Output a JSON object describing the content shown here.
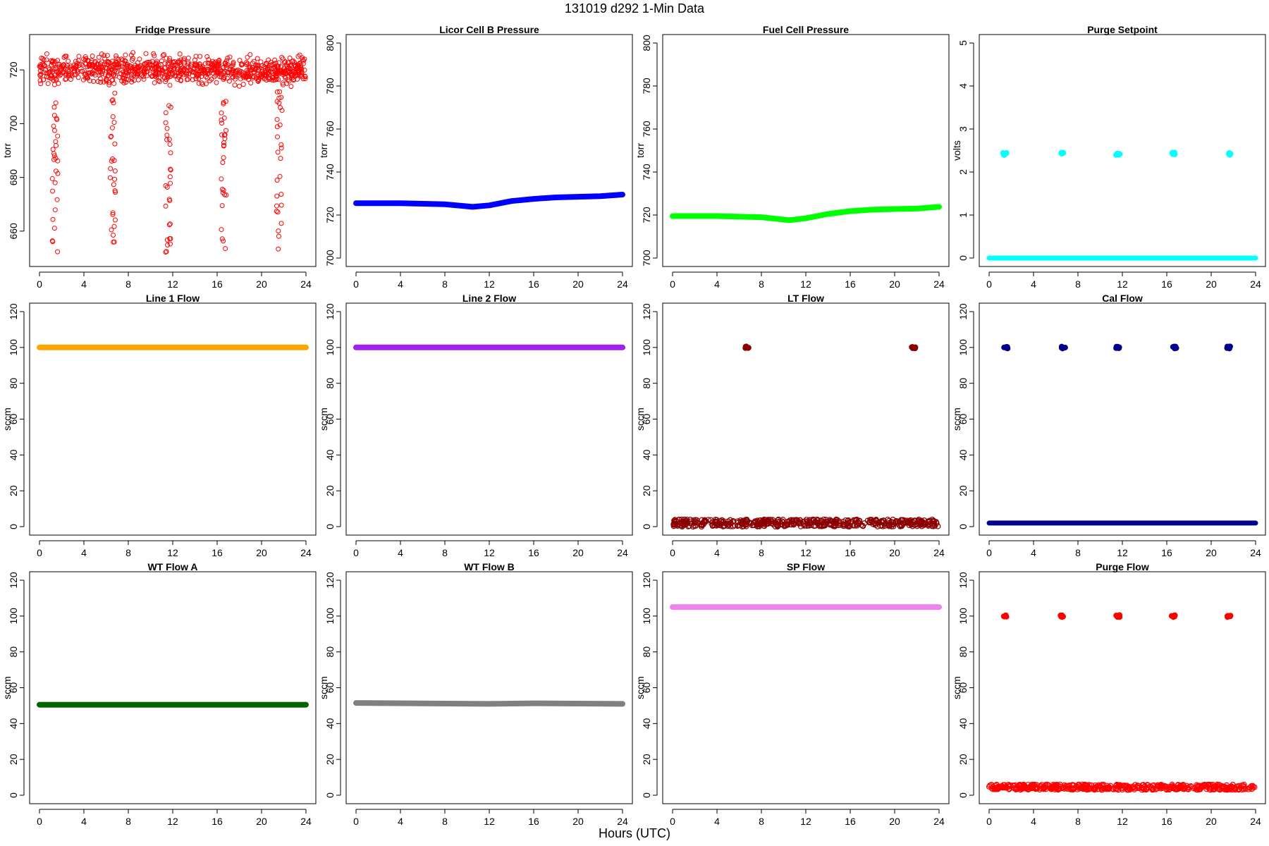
{
  "figure": {
    "title": "131019   d292   1-Min Data",
    "xlabel": "Hours (UTC)"
  },
  "chart_data": [
    {
      "id": "fridge",
      "type": "scatter",
      "title": "Fridge Pressure",
      "ylabel": "torr",
      "color": "#ff0000",
      "marker": "open",
      "xlim": [
        0,
        24
      ],
      "ylim": [
        650,
        730
      ],
      "x_ticks": [
        0,
        4,
        8,
        12,
        16,
        20,
        24
      ],
      "y_ticks": [
        660,
        680,
        700,
        720
      ],
      "pattern": {
        "base_mean": 720,
        "base_spread": 5,
        "dips": [
          1.4,
          6.6,
          11.6,
          16.6,
          21.6
        ],
        "dip_min": 652
      }
    },
    {
      "id": "licor",
      "type": "line",
      "title": "Licor Cell B Pressure",
      "ylabel": "torr",
      "color": "#0000ff",
      "xlim": [
        0,
        24
      ],
      "ylim": [
        700,
        800
      ],
      "x_ticks": [
        0,
        4,
        8,
        12,
        16,
        20,
        24
      ],
      "y_ticks": [
        700,
        720,
        740,
        760,
        780,
        800
      ],
      "x": [
        0,
        4,
        8,
        10.5,
        12,
        14,
        16,
        18,
        20,
        22,
        24
      ],
      "y": [
        725.5,
        725.5,
        725,
        723.8,
        724.5,
        726.5,
        727.5,
        728.2,
        728.5,
        728.8,
        729.5
      ]
    },
    {
      "id": "fuel",
      "type": "line",
      "title": "Fuel Cell Pressure",
      "ylabel": "torr",
      "color": "#00ff00",
      "xlim": [
        0,
        24
      ],
      "ylim": [
        700,
        800
      ],
      "x_ticks": [
        0,
        4,
        8,
        12,
        16,
        20,
        24
      ],
      "y_ticks": [
        700,
        720,
        740,
        760,
        780,
        800
      ],
      "x": [
        0,
        4,
        8,
        10.5,
        12,
        14,
        16,
        18,
        20,
        22,
        24
      ],
      "y": [
        719.5,
        719.5,
        719,
        717.6,
        718.5,
        720.5,
        721.8,
        722.5,
        722.8,
        723,
        723.8
      ]
    },
    {
      "id": "purge_sp",
      "type": "scatter",
      "title": "Purge Setpoint",
      "ylabel": "volts",
      "color": "#00ffff",
      "xlim": [
        0,
        24
      ],
      "ylim": [
        0,
        5
      ],
      "x_ticks": [
        0,
        4,
        8,
        12,
        16,
        20,
        24
      ],
      "y_ticks": [
        0,
        1,
        2,
        3,
        4,
        5
      ],
      "baseline": 0,
      "pulses": [
        {
          "x": 1.4,
          "y": 2.42
        },
        {
          "x": 6.6,
          "y": 2.45
        },
        {
          "x": 11.6,
          "y": 2.42
        },
        {
          "x": 16.6,
          "y": 2.43
        },
        {
          "x": 21.6,
          "y": 2.42
        }
      ]
    },
    {
      "id": "line1",
      "type": "line",
      "title": "Line 1 Flow",
      "ylabel": "sccm",
      "color": "#ffa500",
      "xlim": [
        0,
        24
      ],
      "ylim": [
        0,
        120
      ],
      "x_ticks": [
        0,
        4,
        8,
        12,
        16,
        20,
        24
      ],
      "y_ticks": [
        0,
        20,
        40,
        60,
        80,
        100,
        120
      ],
      "x": [
        0,
        24
      ],
      "y": [
        100,
        100
      ]
    },
    {
      "id": "line2",
      "type": "line",
      "title": "Line 2 Flow",
      "ylabel": "sccm",
      "color": "#a020f0",
      "xlim": [
        0,
        24
      ],
      "ylim": [
        0,
        120
      ],
      "x_ticks": [
        0,
        4,
        8,
        12,
        16,
        20,
        24
      ],
      "y_ticks": [
        0,
        20,
        40,
        60,
        80,
        100,
        120
      ],
      "x": [
        0,
        24
      ],
      "y": [
        100,
        100
      ]
    },
    {
      "id": "lt",
      "type": "scatter",
      "title": "LT Flow",
      "ylabel": "sccm",
      "color": "#8b0000",
      "xlim": [
        0,
        24
      ],
      "ylim": [
        0,
        120
      ],
      "x_ticks": [
        0,
        4,
        8,
        12,
        16,
        20,
        24
      ],
      "y_ticks": [
        0,
        20,
        40,
        60,
        80,
        100,
        120
      ],
      "baseline": 2,
      "baseline_noise": 2,
      "pulses": [
        {
          "x": 6.7,
          "y": 100
        },
        {
          "x": 21.7,
          "y": 100
        }
      ]
    },
    {
      "id": "cal",
      "type": "scatter",
      "title": "Cal Flow",
      "ylabel": "sccm",
      "color": "#00008b",
      "xlim": [
        0,
        24
      ],
      "ylim": [
        0,
        120
      ],
      "x_ticks": [
        0,
        4,
        8,
        12,
        16,
        20,
        24
      ],
      "y_ticks": [
        0,
        20,
        40,
        60,
        80,
        100,
        120
      ],
      "baseline": 2,
      "pulses": [
        {
          "x": 1.5,
          "y": 100
        },
        {
          "x": 6.7,
          "y": 100
        },
        {
          "x": 11.6,
          "y": 100
        },
        {
          "x": 16.7,
          "y": 100
        },
        {
          "x": 21.6,
          "y": 100
        }
      ]
    },
    {
      "id": "wta",
      "type": "line",
      "title": "WT Flow A",
      "ylabel": "sccm",
      "color": "#006400",
      "xlim": [
        0,
        24
      ],
      "ylim": [
        0,
        120
      ],
      "x_ticks": [
        0,
        4,
        8,
        12,
        16,
        20,
        24
      ],
      "y_ticks": [
        0,
        20,
        40,
        60,
        80,
        100,
        120
      ],
      "x": [
        0,
        24
      ],
      "y": [
        50.5,
        50.5
      ]
    },
    {
      "id": "wtb",
      "type": "line",
      "title": "WT Flow B",
      "ylabel": "sccm",
      "color": "#808080",
      "xlim": [
        0,
        24
      ],
      "ylim": [
        0,
        120
      ],
      "x_ticks": [
        0,
        4,
        8,
        12,
        16,
        20,
        24
      ],
      "y_ticks": [
        0,
        20,
        40,
        60,
        80,
        100,
        120
      ],
      "x": [
        0,
        12,
        16,
        24
      ],
      "y": [
        51.5,
        51,
        51.3,
        51
      ]
    },
    {
      "id": "sp",
      "type": "line",
      "title": "SP Flow",
      "ylabel": "sccm",
      "color": "#ee82ee",
      "xlim": [
        0,
        24
      ],
      "ylim": [
        0,
        120
      ],
      "x_ticks": [
        0,
        4,
        8,
        12,
        16,
        20,
        24
      ],
      "y_ticks": [
        0,
        20,
        40,
        60,
        80,
        100,
        120
      ],
      "x": [
        0,
        24
      ],
      "y": [
        105,
        105
      ]
    },
    {
      "id": "purge_flow",
      "type": "scatter",
      "title": "Purge Flow",
      "ylabel": "sccm",
      "color": "#ff0000",
      "xlim": [
        0,
        24
      ],
      "ylim": [
        0,
        120
      ],
      "x_ticks": [
        0,
        4,
        8,
        12,
        16,
        20,
        24
      ],
      "y_ticks": [
        0,
        20,
        40,
        60,
        80,
        100,
        120
      ],
      "baseline": 4.5,
      "baseline_noise": 1.5,
      "pulses": [
        {
          "x": 1.4,
          "y": 100
        },
        {
          "x": 6.6,
          "y": 100
        },
        {
          "x": 11.6,
          "y": 100
        },
        {
          "x": 16.6,
          "y": 100
        },
        {
          "x": 21.6,
          "y": 100
        }
      ]
    }
  ]
}
